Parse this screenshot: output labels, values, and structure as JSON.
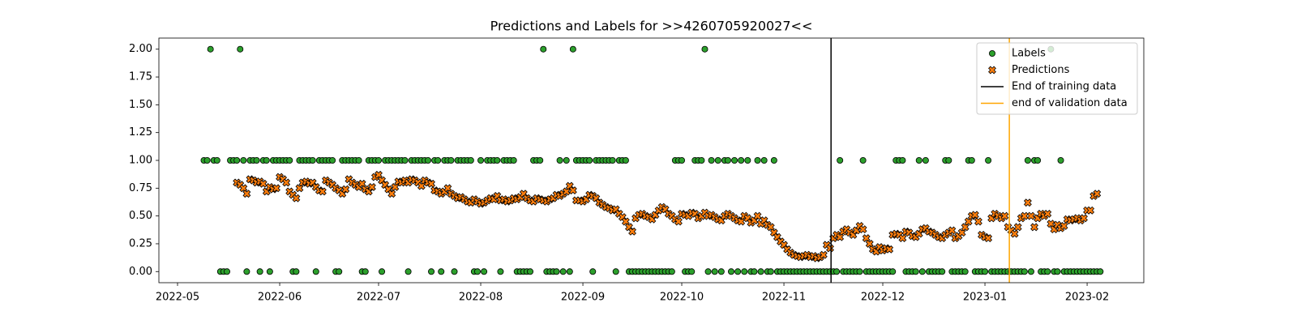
{
  "chart_data": {
    "type": "scatter",
    "title": "Predictions and Labels for >>4260705920027<<",
    "xlim": [
      -5.66,
      293.2
    ],
    "xticks": [
      {
        "value": 0,
        "label": "2022-05"
      },
      {
        "value": 31,
        "label": "2022-06"
      },
      {
        "value": 61,
        "label": "2022-07"
      },
      {
        "value": 92,
        "label": "2022-08"
      },
      {
        "value": 123,
        "label": "2022-09"
      },
      {
        "value": 153,
        "label": "2022-10"
      },
      {
        "value": 184,
        "label": "2022-11"
      },
      {
        "value": 214,
        "label": "2022-12"
      },
      {
        "value": 245,
        "label": "2023-01"
      },
      {
        "value": 276,
        "label": "2023-02"
      }
    ],
    "ylim": [
      -0.1,
      2.1
    ],
    "yticks": [
      {
        "value": 0,
        "label": "0.00"
      },
      {
        "value": 0.25,
        "label": "0.25"
      },
      {
        "value": 0.5,
        "label": "0.50"
      },
      {
        "value": 0.75,
        "label": "0.75"
      },
      {
        "value": 1,
        "label": "1.00"
      },
      {
        "value": 1.25,
        "label": "1.25"
      },
      {
        "value": 1.5,
        "label": "1.50"
      },
      {
        "value": 1.75,
        "label": "1.75"
      },
      {
        "value": 2,
        "label": "2.00"
      }
    ],
    "legend": "upper right",
    "series": [
      {
        "name": "Labels",
        "marker": "circle",
        "color": "#2ca02c",
        "x": [
          8,
          9,
          10,
          11,
          12,
          13,
          14,
          15,
          16,
          17,
          18,
          19,
          20,
          21,
          22,
          23,
          24,
          25,
          26,
          27,
          28,
          29,
          30,
          31,
          32,
          33,
          34,
          35,
          36,
          37,
          38,
          39,
          40,
          41,
          42,
          43,
          44,
          45,
          46,
          47,
          48,
          49,
          50,
          51,
          52,
          53,
          54,
          55,
          56,
          57,
          58,
          59,
          60,
          61,
          62,
          63,
          64,
          65,
          66,
          67,
          68,
          69,
          70,
          71,
          72,
          73,
          74,
          75,
          76,
          77,
          78,
          79,
          80,
          81,
          82,
          83,
          84,
          85,
          86,
          87,
          88,
          89,
          90,
          91,
          92,
          93,
          94,
          95,
          96,
          97,
          98,
          99,
          100,
          101,
          102,
          103,
          104,
          105,
          106,
          107,
          108,
          109,
          110,
          111,
          112,
          113,
          114,
          115,
          116,
          117,
          118,
          119,
          120,
          121,
          122,
          123,
          124,
          125,
          126,
          127,
          128,
          129,
          130,
          131,
          132,
          133,
          134,
          135,
          136,
          137,
          138,
          139,
          140,
          141,
          142,
          143,
          144,
          145,
          146,
          147,
          148,
          149,
          150,
          151,
          152,
          153,
          154,
          155,
          156,
          157,
          158,
          159,
          160,
          161,
          162,
          163,
          164,
          165,
          166,
          167,
          168,
          169,
          170,
          171,
          172,
          173,
          174,
          175,
          176,
          177,
          178,
          179,
          180,
          181,
          182,
          183,
          184,
          185,
          186,
          187,
          188,
          189,
          190,
          191,
          192,
          193,
          194,
          195,
          196,
          197,
          198,
          199,
          200,
          201,
          202,
          203,
          204,
          205,
          206,
          207,
          208,
          209,
          210,
          211,
          212,
          213,
          214,
          215,
          216,
          217,
          218,
          219,
          220,
          221,
          222,
          223,
          224,
          225,
          226,
          227,
          228,
          229,
          230,
          231,
          232,
          233,
          234,
          235,
          236,
          237,
          238,
          239,
          240,
          241,
          242,
          243,
          244,
          245,
          246,
          247,
          248,
          249,
          250,
          251,
          252,
          253,
          254,
          255,
          256,
          257,
          258,
          259,
          260,
          261,
          262,
          263,
          264,
          265,
          266,
          267,
          268,
          269,
          270,
          271,
          272,
          273,
          274,
          275,
          276,
          277,
          278,
          279,
          280
        ],
        "values": [
          1,
          1,
          2,
          1,
          1,
          0,
          0,
          0,
          1,
          1,
          1,
          2,
          1,
          0,
          1,
          1,
          1,
          0,
          1,
          1,
          0,
          1,
          1,
          1,
          1,
          1,
          1,
          0,
          0,
          1,
          1,
          1,
          1,
          1,
          0,
          1,
          1,
          1,
          1,
          1,
          0,
          0,
          1,
          1,
          1,
          1,
          1,
          1,
          0,
          0,
          1,
          1,
          1,
          1,
          0,
          1,
          1,
          1,
          1,
          1,
          1,
          1,
          0,
          1,
          1,
          1,
          1,
          1,
          1,
          0,
          1,
          1,
          0,
          1,
          1,
          1,
          0,
          1,
          1,
          1,
          1,
          1,
          0,
          0,
          1,
          0,
          1,
          1,
          1,
          1,
          0,
          1,
          1,
          1,
          1,
          0,
          0,
          0,
          0,
          0,
          1,
          1,
          1,
          2,
          0,
          0,
          0,
          0,
          1,
          0,
          1,
          0,
          2,
          1,
          1,
          1,
          1,
          1,
          0,
          1,
          1,
          1,
          1,
          1,
          1,
          0,
          1,
          1,
          1,
          0,
          0,
          0,
          0,
          0,
          0,
          0,
          0,
          0,
          0,
          0,
          0,
          0,
          0,
          1,
          1,
          1,
          0,
          0,
          0,
          1,
          1,
          1,
          2,
          0,
          1,
          0,
          1,
          0,
          1,
          1,
          0,
          1,
          0,
          1,
          0,
          1,
          0,
          0,
          1,
          0,
          1,
          0,
          0,
          1,
          0,
          0,
          0,
          0,
          0,
          0,
          0,
          0,
          0,
          0,
          0,
          0,
          0,
          0,
          0,
          0,
          0,
          0,
          0,
          1,
          0,
          0,
          0,
          0,
          0,
          0,
          1,
          0,
          0,
          0,
          0,
          0,
          0,
          0,
          0,
          0,
          1,
          1,
          1,
          0,
          0,
          0,
          0,
          1,
          0,
          1,
          0,
          0,
          0,
          0,
          0,
          1,
          1,
          0,
          0,
          0,
          0,
          0,
          1,
          1,
          0,
          0,
          0,
          0,
          1,
          0,
          0,
          0,
          0,
          0,
          0,
          0,
          0,
          0,
          0,
          0,
          1,
          0,
          1,
          1,
          0,
          0,
          0,
          2,
          0,
          0,
          1,
          0,
          0,
          0,
          0,
          0,
          0,
          0,
          0,
          0,
          0,
          0,
          0
        ]
      },
      {
        "name": "Predictions",
        "marker": "x",
        "color": "#ff7f0e",
        "x": [
          18,
          19,
          20,
          21,
          22,
          23,
          24,
          25,
          26,
          27,
          28,
          29,
          30,
          31,
          32,
          33,
          34,
          35,
          36,
          37,
          38,
          39,
          40,
          41,
          42,
          43,
          44,
          45,
          46,
          47,
          48,
          49,
          50,
          51,
          52,
          53,
          54,
          55,
          56,
          57,
          58,
          59,
          60,
          61,
          62,
          63,
          64,
          65,
          66,
          67,
          68,
          69,
          70,
          71,
          72,
          73,
          74,
          75,
          76,
          77,
          78,
          79,
          80,
          81,
          82,
          83,
          84,
          85,
          86,
          87,
          88,
          89,
          90,
          91,
          92,
          93,
          94,
          95,
          96,
          97,
          98,
          99,
          100,
          101,
          102,
          103,
          104,
          105,
          106,
          107,
          108,
          109,
          110,
          111,
          112,
          113,
          114,
          115,
          116,
          117,
          118,
          119,
          120,
          121,
          122,
          123,
          124,
          125,
          126,
          127,
          128,
          129,
          130,
          131,
          132,
          133,
          134,
          135,
          136,
          137,
          138,
          139,
          140,
          141,
          142,
          143,
          144,
          145,
          146,
          147,
          148,
          149,
          150,
          151,
          152,
          153,
          154,
          155,
          156,
          157,
          158,
          159,
          160,
          161,
          162,
          163,
          164,
          165,
          166,
          167,
          168,
          169,
          170,
          171,
          172,
          173,
          174,
          175,
          176,
          177,
          178,
          179,
          180,
          181,
          182,
          183,
          184,
          185,
          186,
          187,
          188,
          189,
          190,
          191,
          192,
          193,
          194,
          195,
          196,
          197,
          198,
          199,
          200,
          201,
          202,
          203,
          204,
          205,
          206,
          207,
          208,
          209,
          210,
          211,
          212,
          213,
          214,
          215,
          216,
          217,
          218,
          219,
          220,
          221,
          222,
          223,
          224,
          225,
          226,
          227,
          228,
          229,
          230,
          231,
          232,
          233,
          234,
          235,
          236,
          237,
          238,
          239,
          240,
          241,
          242,
          243,
          244,
          245,
          246,
          247,
          248,
          249,
          250,
          251,
          252,
          253,
          254,
          255,
          256,
          257,
          258,
          259,
          260,
          261,
          262,
          263,
          264,
          265,
          266,
          267,
          268,
          269,
          270,
          271,
          272,
          273,
          274,
          275,
          276,
          277,
          278,
          279
        ],
        "values": [
          0.8,
          0.78,
          0.75,
          0.7,
          0.83,
          0.82,
          0.8,
          0.81,
          0.79,
          0.72,
          0.76,
          0.74,
          0.75,
          0.85,
          0.83,
          0.8,
          0.72,
          0.69,
          0.66,
          0.75,
          0.8,
          0.81,
          0.79,
          0.8,
          0.76,
          0.73,
          0.72,
          0.82,
          0.8,
          0.78,
          0.75,
          0.73,
          0.7,
          0.74,
          0.83,
          0.8,
          0.78,
          0.76,
          0.79,
          0.74,
          0.72,
          0.76,
          0.85,
          0.87,
          0.82,
          0.78,
          0.74,
          0.7,
          0.76,
          0.81,
          0.8,
          0.82,
          0.8,
          0.83,
          0.82,
          0.8,
          0.77,
          0.82,
          0.8,
          0.79,
          0.73,
          0.72,
          0.7,
          0.72,
          0.75,
          0.7,
          0.68,
          0.66,
          0.67,
          0.65,
          0.63,
          0.62,
          0.65,
          0.63,
          0.61,
          0.62,
          0.64,
          0.66,
          0.65,
          0.68,
          0.64,
          0.65,
          0.63,
          0.64,
          0.66,
          0.65,
          0.67,
          0.7,
          0.66,
          0.64,
          0.63,
          0.66,
          0.65,
          0.64,
          0.63,
          0.65,
          0.66,
          0.69,
          0.68,
          0.7,
          0.72,
          0.77,
          0.73,
          0.64,
          0.64,
          0.63,
          0.65,
          0.69,
          0.68,
          0.66,
          0.62,
          0.6,
          0.58,
          0.57,
          0.55,
          0.56,
          0.52,
          0.49,
          0.45,
          0.4,
          0.36,
          0.48,
          0.51,
          0.52,
          0.5,
          0.49,
          0.47,
          0.51,
          0.55,
          0.58,
          0.56,
          0.52,
          0.5,
          0.47,
          0.45,
          0.52,
          0.51,
          0.5,
          0.53,
          0.52,
          0.48,
          0.5,
          0.53,
          0.5,
          0.51,
          0.49,
          0.47,
          0.46,
          0.5,
          0.52,
          0.5,
          0.48,
          0.46,
          0.45,
          0.5,
          0.48,
          0.44,
          0.46,
          0.5,
          0.43,
          0.46,
          0.42,
          0.4,
          0.35,
          0.31,
          0.27,
          0.24,
          0.2,
          0.17,
          0.15,
          0.14,
          0.13,
          0.14,
          0.15,
          0.13,
          0.14,
          0.12,
          0.13,
          0.15,
          0.24,
          0.21,
          0.3,
          0.33,
          0.31,
          0.36,
          0.38,
          0.35,
          0.33,
          0.37,
          0.41,
          0.38,
          0.3,
          0.25,
          0.2,
          0.18,
          0.22,
          0.19,
          0.21,
          0.2,
          0.33,
          0.34,
          0.33,
          0.3,
          0.36,
          0.35,
          0.32,
          0.31,
          0.34,
          0.38,
          0.39,
          0.36,
          0.35,
          0.33,
          0.31,
          0.3,
          0.33,
          0.35,
          0.37,
          0.3,
          0.32,
          0.35,
          0.4,
          0.45,
          0.5,
          0.51,
          0.45,
          0.33,
          0.31,
          0.3,
          0.48,
          0.52,
          0.5,
          0.48,
          0.5,
          0.4,
          0.37,
          0.34,
          0.4,
          0.48,
          0.5,
          0.62,
          0.5,
          0.4,
          0.48,
          0.52,
          0.5,
          0.52,
          0.43,
          0.38,
          0.42,
          0.39,
          0.41,
          0.47,
          0.46,
          0.47,
          0.48,
          0.46,
          0.48,
          0.55,
          0.55,
          0.68,
          0.7
        ]
      }
    ],
    "vlines": [
      {
        "name": "End of training data",
        "x": 198.3,
        "color": "#000000"
      },
      {
        "name": "end of validation data",
        "x": 252.4,
        "color": "#ffa500"
      }
    ]
  }
}
